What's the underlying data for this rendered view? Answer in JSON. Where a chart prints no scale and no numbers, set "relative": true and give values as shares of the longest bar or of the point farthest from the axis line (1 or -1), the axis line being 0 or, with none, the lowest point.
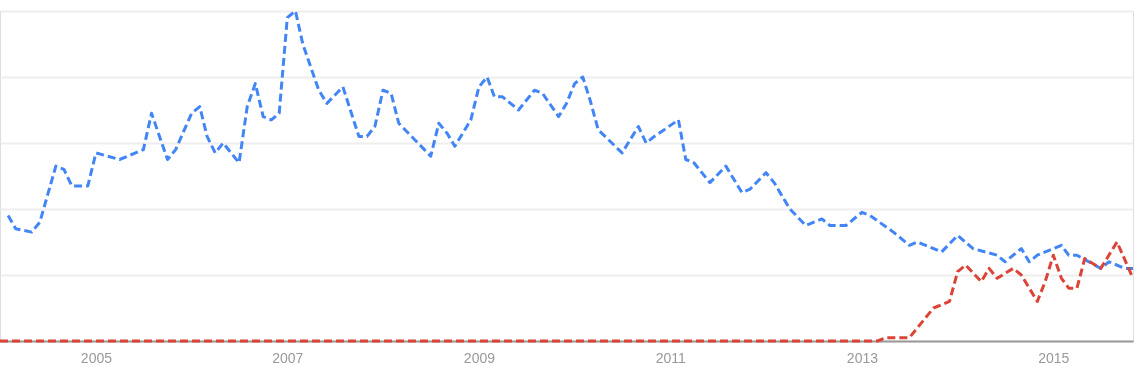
{
  "chart_data": {
    "type": "line",
    "relative": true,
    "xlim": [
      "2004-01",
      "2015-11"
    ],
    "xticks": [
      {
        "value": "2005-01",
        "label": "2005"
      },
      {
        "value": "2007-01",
        "label": "2007"
      },
      {
        "value": "2009-01",
        "label": "2009"
      },
      {
        "value": "2011-01",
        "label": "2011"
      },
      {
        "value": "2013-01",
        "label": "2013"
      },
      {
        "value": "2015-01",
        "label": "2015"
      }
    ],
    "grid": "y",
    "line_style": "dashed",
    "series": [
      {
        "color": "#4285f4",
        "x": [
          "2004-02",
          "2004-03",
          "2004-05",
          "2004-06",
          "2004-08",
          "2004-09",
          "2004-10",
          "2004-12",
          "2005-01",
          "2005-04",
          "2005-06",
          "2005-07",
          "2005-08",
          "2005-10",
          "2005-11",
          "2006-01",
          "2006-02",
          "2006-03",
          "2006-04",
          "2006-05",
          "2006-07",
          "2006-08",
          "2006-09",
          "2006-10",
          "2006-11",
          "2006-12",
          "2007-01",
          "2007-02",
          "2007-03",
          "2007-05",
          "2007-06",
          "2007-08",
          "2007-10",
          "2007-11",
          "2007-12",
          "2008-01",
          "2008-02",
          "2008-03",
          "2008-05",
          "2008-07",
          "2008-08",
          "2008-09",
          "2008-10",
          "2008-12",
          "2009-01",
          "2009-02",
          "2009-03",
          "2009-04",
          "2009-06",
          "2009-08",
          "2009-09",
          "2009-11",
          "2009-12",
          "2010-01",
          "2010-02",
          "2010-03",
          "2010-04",
          "2010-07",
          "2010-09",
          "2010-10",
          "2010-11",
          "2011-02",
          "2011-03",
          "2011-04",
          "2011-06",
          "2011-08",
          "2011-10",
          "2011-11",
          "2012-01",
          "2012-02",
          "2012-04",
          "2012-06",
          "2012-08",
          "2012-09",
          "2012-11",
          "2013-01",
          "2013-02",
          "2013-05",
          "2013-07",
          "2013-08",
          "2013-11",
          "2014-01",
          "2014-03",
          "2014-06",
          "2014-07",
          "2014-09",
          "2014-10",
          "2014-11",
          "2015-02",
          "2015-03",
          "2015-04",
          "2015-07",
          "2015-08",
          "2015-10",
          "2015-11"
        ],
        "values": [
          0.38,
          0.34,
          0.33,
          0.36,
          0.53,
          0.52,
          0.47,
          0.47,
          0.57,
          0.55,
          0.57,
          0.58,
          0.69,
          0.55,
          0.58,
          0.69,
          0.71,
          0.62,
          0.57,
          0.6,
          0.54,
          0.71,
          0.78,
          0.68,
          0.67,
          0.69,
          0.98,
          1.0,
          0.9,
          0.76,
          0.72,
          0.77,
          0.62,
          0.62,
          0.65,
          0.76,
          0.75,
          0.66,
          0.61,
          0.56,
          0.66,
          0.63,
          0.59,
          0.67,
          0.77,
          0.8,
          0.74,
          0.74,
          0.7,
          0.76,
          0.75,
          0.68,
          0.72,
          0.78,
          0.8,
          0.73,
          0.64,
          0.57,
          0.65,
          0.6,
          0.62,
          0.67,
          0.55,
          0.54,
          0.48,
          0.53,
          0.45,
          0.46,
          0.51,
          0.48,
          0.4,
          0.35,
          0.37,
          0.35,
          0.35,
          0.39,
          0.38,
          0.33,
          0.29,
          0.3,
          0.27,
          0.32,
          0.28,
          0.26,
          0.24,
          0.28,
          0.24,
          0.26,
          0.29,
          0.26,
          0.26,
          0.22,
          0.24,
          0.22,
          0.22
        ]
      },
      {
        "color": "#db4437",
        "x": [
          "2004-01",
          "2013-03",
          "2013-04",
          "2013-07",
          "2013-10",
          "2013-12",
          "2014-01",
          "2014-02",
          "2014-04",
          "2014-05",
          "2014-06",
          "2014-08",
          "2014-09",
          "2014-11",
          "2014-12",
          "2015-01",
          "2015-02",
          "2015-03",
          "2015-04",
          "2015-05",
          "2015-07",
          "2015-09",
          "2015-11"
        ],
        "values": [
          0,
          0,
          0.01,
          0.01,
          0.1,
          0.12,
          0.21,
          0.23,
          0.18,
          0.22,
          0.19,
          0.22,
          0.2,
          0.12,
          0.18,
          0.26,
          0.19,
          0.16,
          0.16,
          0.25,
          0.22,
          0.3,
          0.19
        ]
      }
    ]
  }
}
